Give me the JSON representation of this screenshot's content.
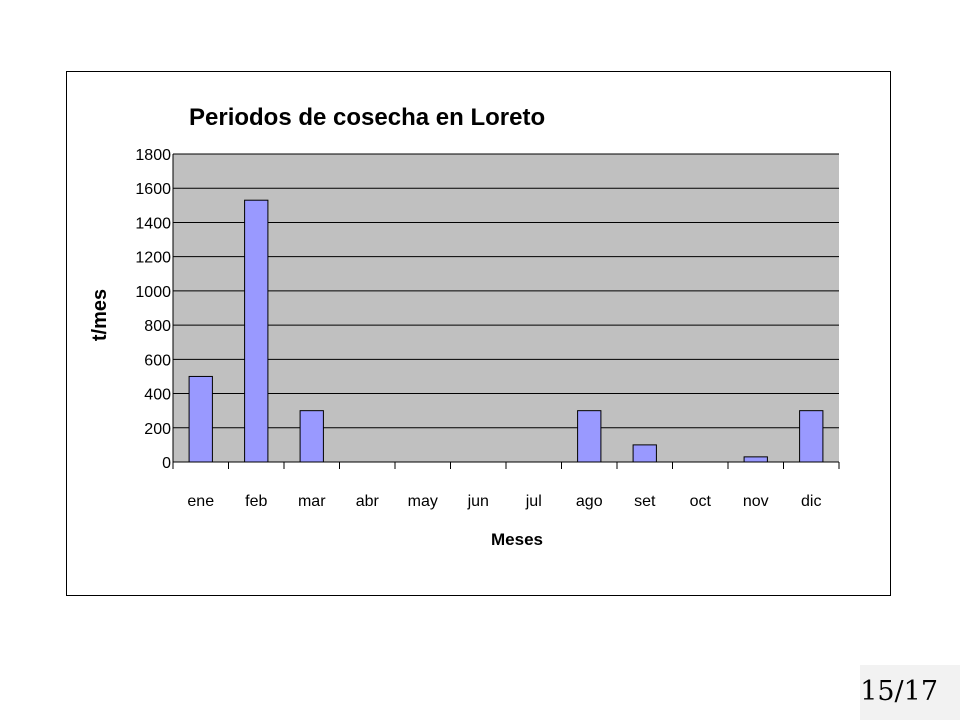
{
  "slide": {
    "page_number": "15/17"
  },
  "colors": {
    "plot_background": "#c0c0c0",
    "bar_fill": "#9999ff",
    "bar_stroke": "#000000",
    "gridline": "#000000"
  },
  "chart_data": {
    "type": "bar",
    "title": "Periodos de cosecha en Loreto",
    "xlabel": "Meses",
    "ylabel": "t/mes",
    "categories": [
      "ene",
      "feb",
      "mar",
      "abr",
      "may",
      "jun",
      "jul",
      "ago",
      "set",
      "oct",
      "nov",
      "dic"
    ],
    "values": [
      500,
      1530,
      300,
      0,
      0,
      0,
      0,
      300,
      100,
      0,
      30,
      300
    ],
    "ylim": [
      0,
      1800
    ],
    "yticks": [
      0,
      200,
      400,
      600,
      800,
      1000,
      1200,
      1400,
      1600,
      1800
    ],
    "grid": true,
    "legend": "none"
  }
}
